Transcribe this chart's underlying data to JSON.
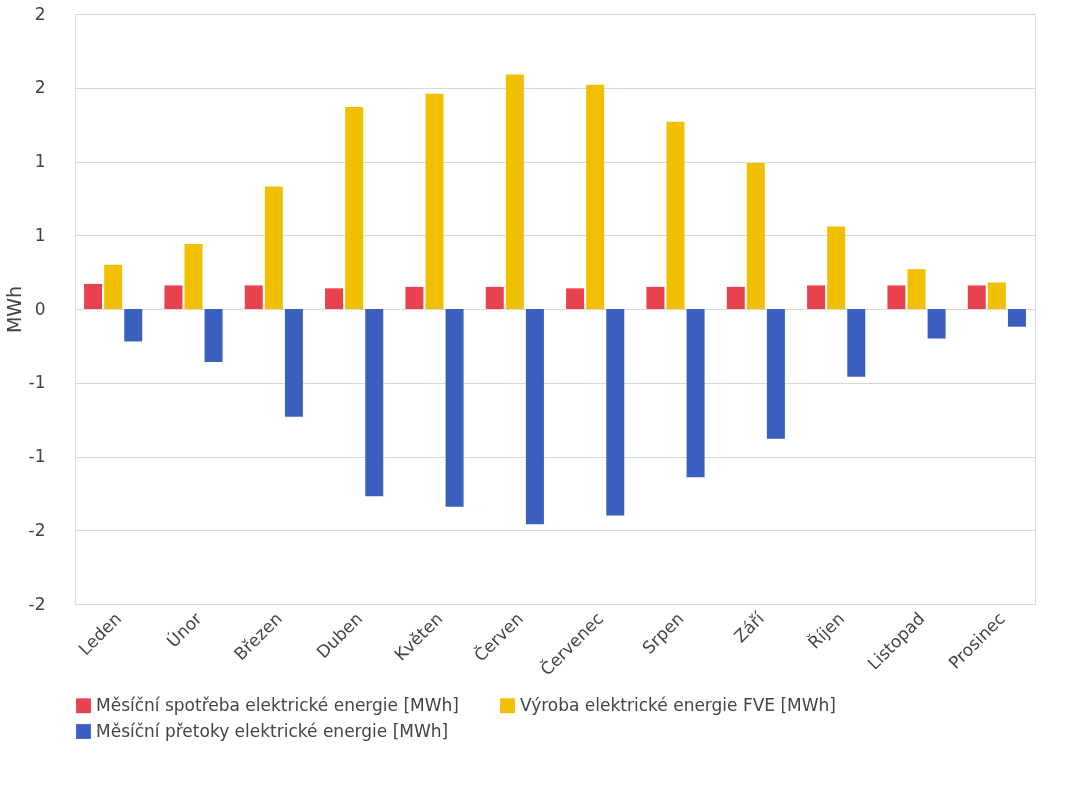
{
  "chart_data": {
    "type": "bar",
    "ylabel": "MWh",
    "categories": [
      "Leden",
      "Únor",
      "Březen",
      "Duben",
      "Květen",
      "Červen",
      "Červenec",
      "Srpen",
      "Září",
      "Říjen",
      "Listopad",
      "Prosinec"
    ],
    "series": [
      {
        "name": "Měsíční spotřeba elektrické energie [MWh]",
        "color": "#e8424f",
        "values": [
          0.17,
          0.16,
          0.16,
          0.14,
          0.15,
          0.15,
          0.14,
          0.15,
          0.15,
          0.16,
          0.16,
          0.16
        ]
      },
      {
        "name": "Výroba elektrické energie FVE [MWh]",
        "color": "#f0c000",
        "values": [
          0.3,
          0.44,
          0.83,
          1.37,
          1.46,
          1.59,
          1.52,
          1.27,
          0.99,
          0.56,
          0.27,
          0.18
        ]
      },
      {
        "name": "Měsíční přetoky elektrické energie [MWh]",
        "color": "#3a5fbf",
        "values": [
          -0.22,
          -0.36,
          -0.73,
          -1.27,
          -1.34,
          -1.46,
          -1.4,
          -1.14,
          -0.88,
          -0.46,
          -0.2,
          -0.12
        ]
      }
    ],
    "ylim": [
      -2,
      2
    ],
    "yticks": [
      {
        "value": -2,
        "label": "-2"
      },
      {
        "value": -1.5,
        "label": "-2"
      },
      {
        "value": -1,
        "label": "-1"
      },
      {
        "value": -0.5,
        "label": "-1"
      },
      {
        "value": 0,
        "label": "0"
      },
      {
        "value": 0.5,
        "label": "1"
      },
      {
        "value": 1,
        "label": "1"
      },
      {
        "value": 1.5,
        "label": "2"
      },
      {
        "value": 2,
        "label": "2"
      }
    ],
    "grid": "y",
    "legend": "bottom"
  }
}
